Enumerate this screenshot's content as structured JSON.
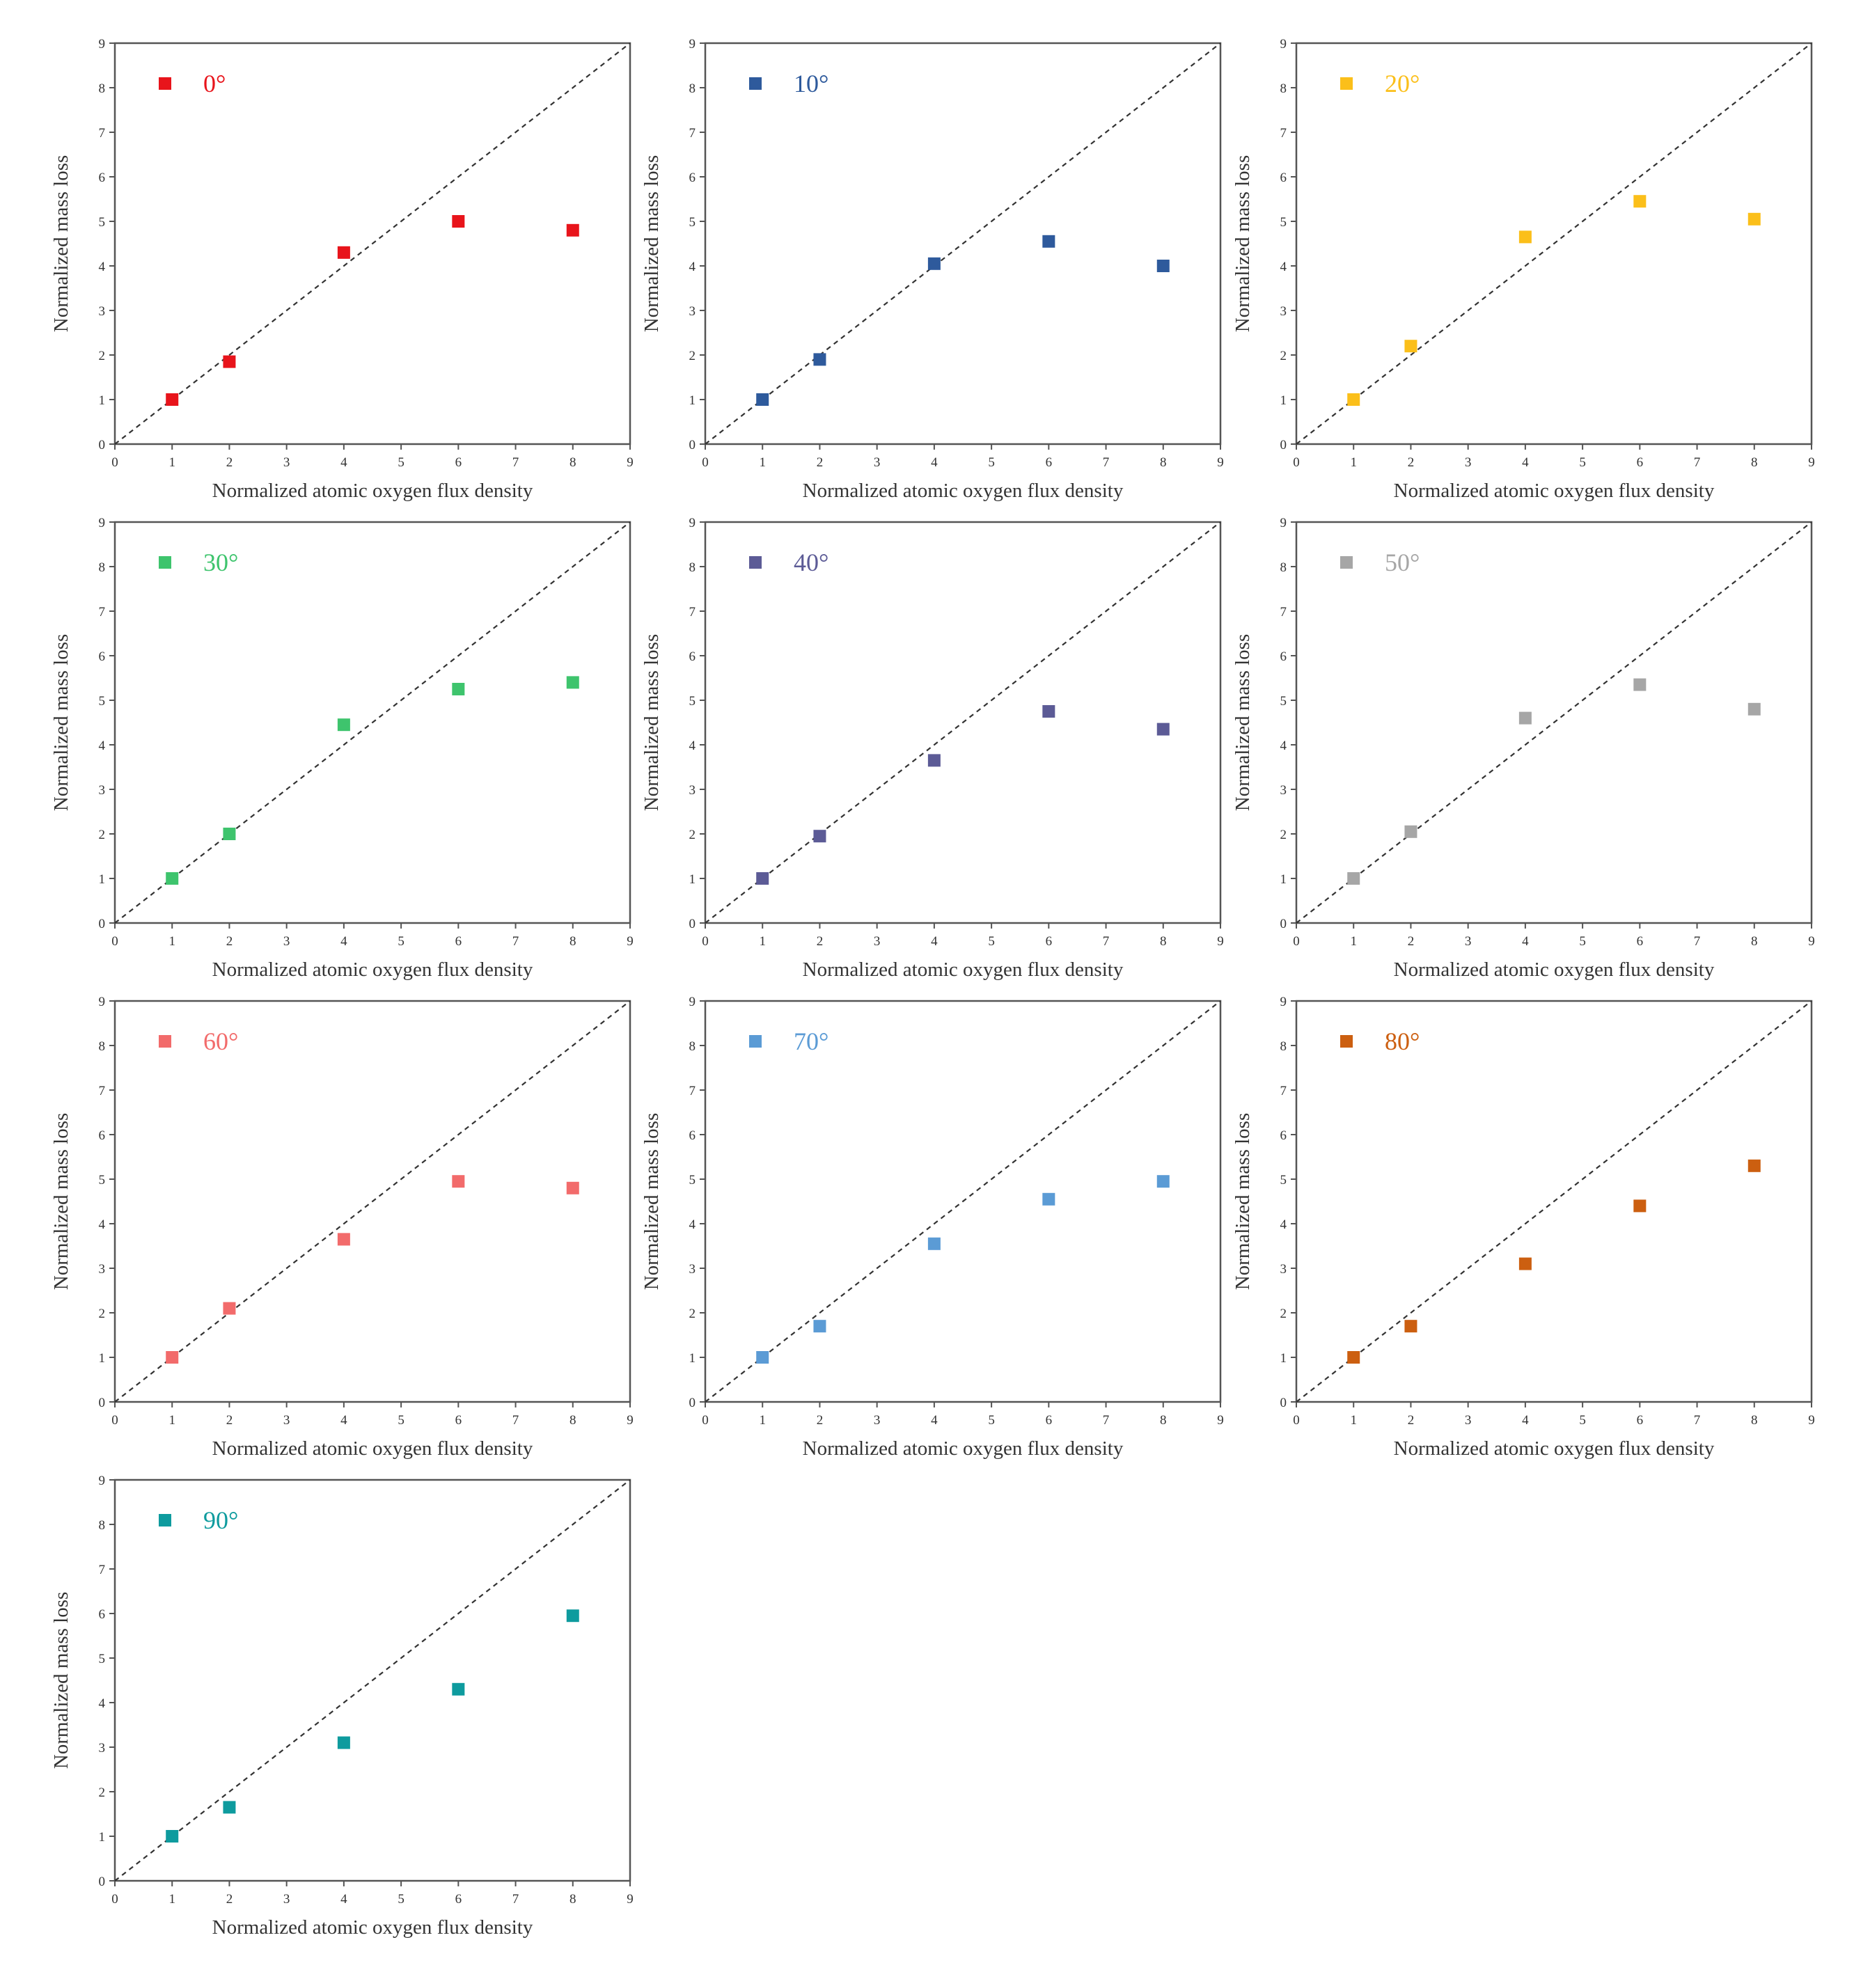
{
  "chart_data": [
    {
      "type": "scatter",
      "legend": "0°",
      "color": "#e8141b",
      "xlabel": "Normalized atomic oxygen flux density",
      "ylabel": "Normalized mass loss",
      "xlim": [
        0,
        9
      ],
      "ylim": [
        0,
        9
      ],
      "x_ticks": [
        "0",
        "1",
        "2",
        "3",
        "4",
        "5",
        "6",
        "7",
        "8",
        "9"
      ],
      "y_ticks": [
        "0",
        "1",
        "2",
        "3",
        "4",
        "5",
        "6",
        "7",
        "8",
        "9"
      ],
      "reference_line": "y = x",
      "legend_position": "top-left",
      "series": [
        {
          "name": "0°",
          "x": [
            1,
            2,
            4,
            6,
            8
          ],
          "y": [
            1.0,
            1.85,
            4.3,
            5.0,
            4.8
          ]
        }
      ]
    },
    {
      "type": "scatter",
      "legend": "10°",
      "color": "#2e5a9c",
      "xlabel": "Normalized atomic oxygen flux density",
      "ylabel": "Normalized mass loss",
      "xlim": [
        0,
        9
      ],
      "ylim": [
        0,
        9
      ],
      "x_ticks": [
        "0",
        "1",
        "2",
        "3",
        "4",
        "5",
        "6",
        "7",
        "8",
        "9"
      ],
      "y_ticks": [
        "0",
        "1",
        "2",
        "3",
        "4",
        "5",
        "6",
        "7",
        "8",
        "9"
      ],
      "reference_line": "y = x",
      "legend_position": "top-left",
      "series": [
        {
          "name": "10°",
          "x": [
            1,
            2,
            4,
            6,
            8
          ],
          "y": [
            1.0,
            1.9,
            4.05,
            4.55,
            4.0
          ]
        }
      ]
    },
    {
      "type": "scatter",
      "legend": "20°",
      "color": "#fbbf1a",
      "xlabel": "Normalized atomic oxygen flux density",
      "ylabel": "Normalized mass loss",
      "xlim": [
        0,
        9
      ],
      "ylim": [
        0,
        9
      ],
      "x_ticks": [
        "0",
        "1",
        "2",
        "3",
        "4",
        "5",
        "6",
        "7",
        "8",
        "9"
      ],
      "y_ticks": [
        "0",
        "1",
        "2",
        "3",
        "4",
        "5",
        "6",
        "7",
        "8",
        "9"
      ],
      "reference_line": "y = x",
      "legend_position": "top-left",
      "series": [
        {
          "name": "20°",
          "x": [
            1,
            2,
            4,
            6,
            8
          ],
          "y": [
            1.0,
            2.2,
            4.65,
            5.45,
            5.05
          ]
        }
      ]
    },
    {
      "type": "scatter",
      "legend": "30°",
      "color": "#3ec46d",
      "xlabel": "Normalized atomic oxygen flux density",
      "ylabel": "Normalized mass loss",
      "xlim": [
        0,
        9
      ],
      "ylim": [
        0,
        9
      ],
      "x_ticks": [
        "0",
        "1",
        "2",
        "3",
        "4",
        "5",
        "6",
        "7",
        "8",
        "9"
      ],
      "y_ticks": [
        "0",
        "1",
        "2",
        "3",
        "4",
        "5",
        "6",
        "7",
        "8",
        "9"
      ],
      "reference_line": "y = x",
      "legend_position": "top-left",
      "series": [
        {
          "name": "30°",
          "x": [
            1,
            2,
            4,
            6,
            8
          ],
          "y": [
            1.0,
            2.0,
            4.45,
            5.25,
            5.4
          ]
        }
      ]
    },
    {
      "type": "scatter",
      "legend": "40°",
      "color": "#5c5b96",
      "xlabel": "Normalized atomic oxygen flux density",
      "ylabel": "Normalized mass loss",
      "xlim": [
        0,
        9
      ],
      "ylim": [
        0,
        9
      ],
      "x_ticks": [
        "0",
        "1",
        "2",
        "3",
        "4",
        "5",
        "6",
        "7",
        "8",
        "9"
      ],
      "y_ticks": [
        "0",
        "1",
        "2",
        "3",
        "4",
        "5",
        "6",
        "7",
        "8",
        "9"
      ],
      "reference_line": "y = x",
      "legend_position": "top-left",
      "series": [
        {
          "name": "40°",
          "x": [
            1,
            2,
            4,
            6,
            8
          ],
          "y": [
            1.0,
            1.95,
            3.65,
            4.75,
            4.35
          ]
        }
      ]
    },
    {
      "type": "scatter",
      "legend": "50°",
      "color": "#a6a6a6",
      "xlabel": "Normalized atomic oxygen flux density",
      "ylabel": "Normalized mass loss",
      "xlim": [
        0,
        9
      ],
      "ylim": [
        0,
        9
      ],
      "x_ticks": [
        "0",
        "1",
        "2",
        "3",
        "4",
        "5",
        "6",
        "7",
        "8",
        "9"
      ],
      "y_ticks": [
        "0",
        "1",
        "2",
        "3",
        "4",
        "5",
        "6",
        "7",
        "8",
        "9"
      ],
      "reference_line": "y = x",
      "legend_position": "top-left",
      "series": [
        {
          "name": "50°",
          "x": [
            1,
            2,
            4,
            6,
            8
          ],
          "y": [
            1.0,
            2.05,
            4.6,
            5.35,
            4.8
          ]
        }
      ]
    },
    {
      "type": "scatter",
      "legend": "60°",
      "color": "#f26b6b",
      "xlabel": "Normalized atomic oxygen flux density",
      "ylabel": "Normalized mass loss",
      "xlim": [
        0,
        9
      ],
      "ylim": [
        0,
        9
      ],
      "x_ticks": [
        "0",
        "1",
        "2",
        "3",
        "4",
        "5",
        "6",
        "7",
        "8",
        "9"
      ],
      "y_ticks": [
        "0",
        "1",
        "2",
        "3",
        "4",
        "5",
        "6",
        "7",
        "8",
        "9"
      ],
      "reference_line": "y = x",
      "legend_position": "top-left",
      "series": [
        {
          "name": "60°",
          "x": [
            1,
            2,
            4,
            6,
            8
          ],
          "y": [
            1.0,
            2.1,
            3.65,
            4.95,
            4.8
          ]
        }
      ]
    },
    {
      "type": "scatter",
      "legend": "70°",
      "color": "#5b9bd5",
      "xlabel": "Normalized atomic oxygen flux density",
      "ylabel": "Normalized mass loss",
      "xlim": [
        0,
        9
      ],
      "ylim": [
        0,
        9
      ],
      "x_ticks": [
        "0",
        "1",
        "2",
        "3",
        "4",
        "5",
        "6",
        "7",
        "8",
        "9"
      ],
      "y_ticks": [
        "0",
        "1",
        "2",
        "3",
        "4",
        "5",
        "6",
        "7",
        "8",
        "9"
      ],
      "reference_line": "y = x",
      "legend_position": "top-left",
      "series": [
        {
          "name": "70°",
          "x": [
            1,
            2,
            4,
            6,
            8
          ],
          "y": [
            1.0,
            1.7,
            3.55,
            4.55,
            4.95
          ]
        }
      ]
    },
    {
      "type": "scatter",
      "legend": "80°",
      "color": "#cc5f10",
      "xlabel": "Normalized atomic oxygen flux density",
      "ylabel": "Normalized mass loss",
      "xlim": [
        0,
        9
      ],
      "ylim": [
        0,
        9
      ],
      "x_ticks": [
        "0",
        "1",
        "2",
        "3",
        "4",
        "5",
        "6",
        "7",
        "8",
        "9"
      ],
      "y_ticks": [
        "0",
        "1",
        "2",
        "3",
        "4",
        "5",
        "6",
        "7",
        "8",
        "9"
      ],
      "reference_line": "y = x",
      "legend_position": "top-left",
      "series": [
        {
          "name": "80°",
          "x": [
            1,
            2,
            4,
            6,
            8
          ],
          "y": [
            1.0,
            1.7,
            3.1,
            4.4,
            5.3
          ]
        }
      ]
    },
    {
      "type": "scatter",
      "legend": "90°",
      "color": "#0e9b9e",
      "xlabel": "Normalized atomic oxygen flux density",
      "ylabel": "Normalized mass loss",
      "xlim": [
        0,
        9
      ],
      "ylim": [
        0,
        9
      ],
      "x_ticks": [
        "0",
        "1",
        "2",
        "3",
        "4",
        "5",
        "6",
        "7",
        "8",
        "9"
      ],
      "y_ticks": [
        "0",
        "1",
        "2",
        "3",
        "4",
        "5",
        "6",
        "7",
        "8",
        "9"
      ],
      "reference_line": "y = x",
      "legend_position": "top-left",
      "series": [
        {
          "name": "90°",
          "x": [
            1,
            2,
            4,
            6,
            8
          ],
          "y": [
            1.0,
            1.65,
            3.1,
            4.3,
            5.95
          ]
        }
      ]
    }
  ]
}
